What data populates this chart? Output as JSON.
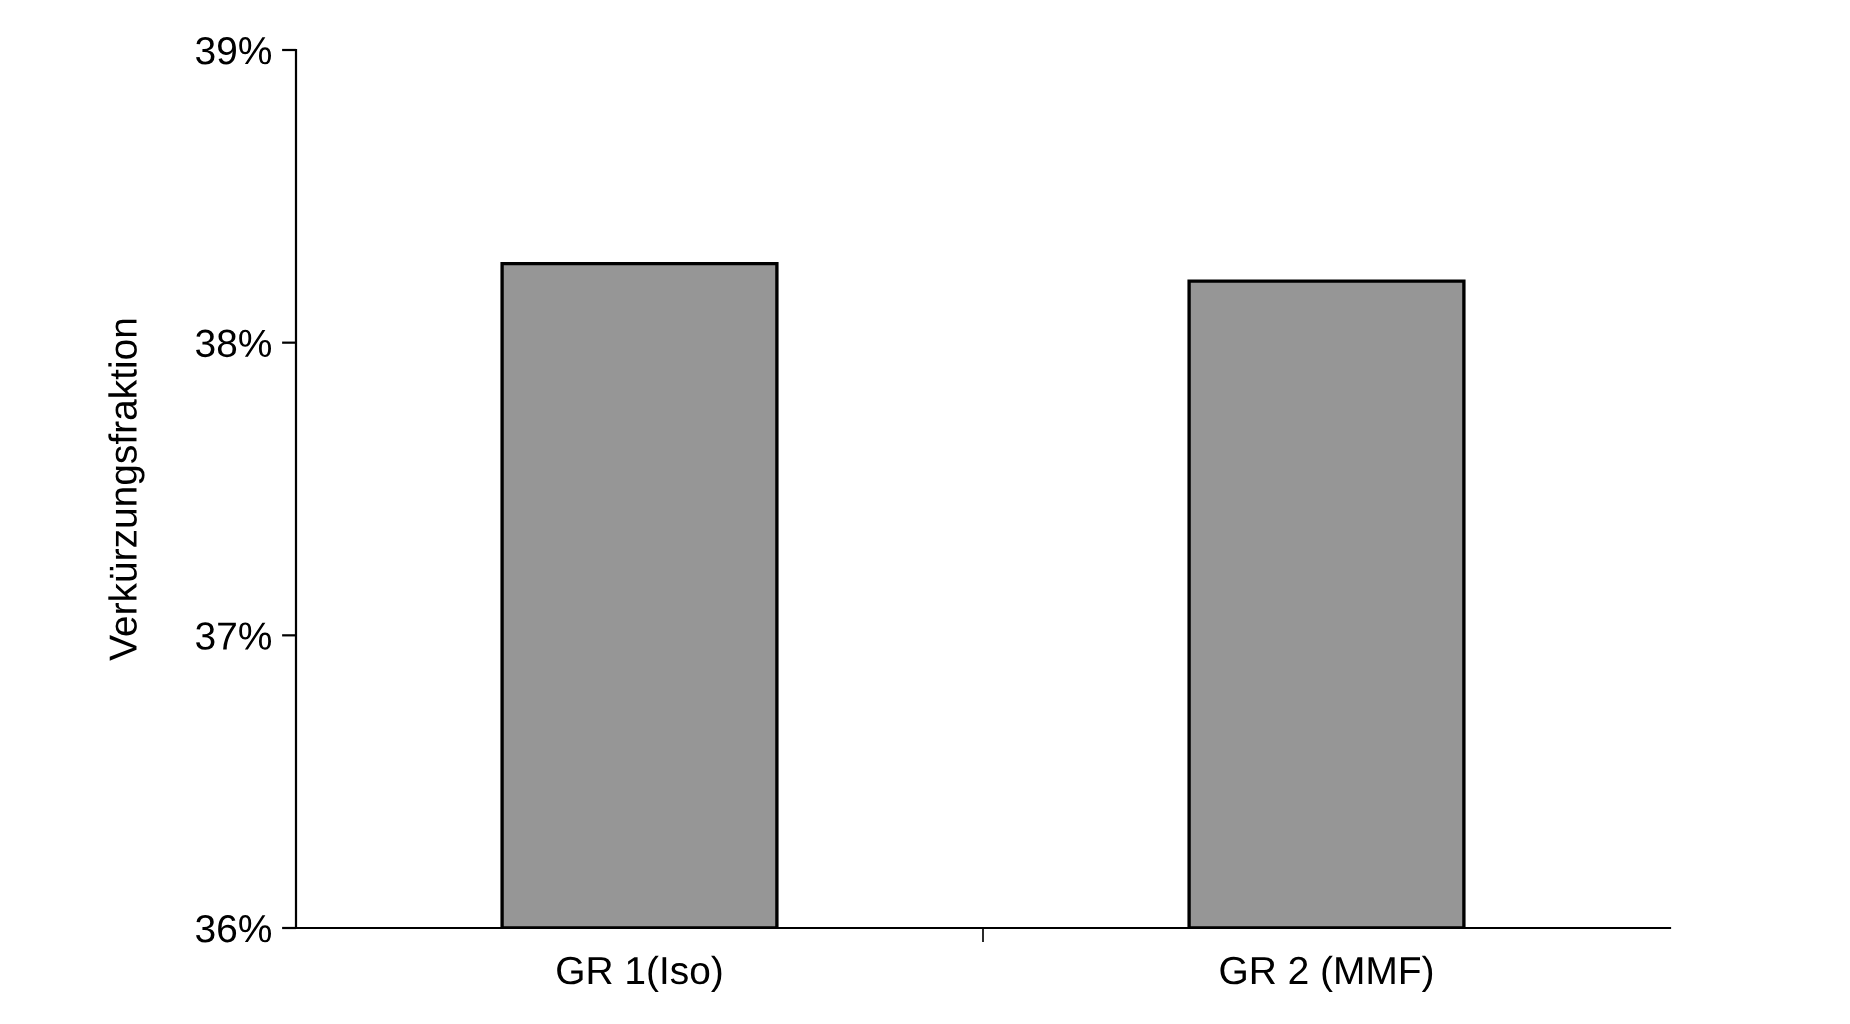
{
  "chart_data": {
    "type": "bar",
    "ylabel": "Verkürzungsfraktion",
    "categories": [
      "GR 1(Iso)",
      "GR 2 (MMF)"
    ],
    "values": [
      38.27,
      38.21
    ],
    "color": "#969696",
    "ylim": [
      36,
      39
    ],
    "yticks": [
      {
        "value": 36,
        "label": "36%"
      },
      {
        "value": 37,
        "label": "37%"
      },
      {
        "value": 38,
        "label": "38%"
      },
      {
        "value": 39,
        "label": "39%"
      }
    ],
    "grid": false,
    "legend": false
  }
}
